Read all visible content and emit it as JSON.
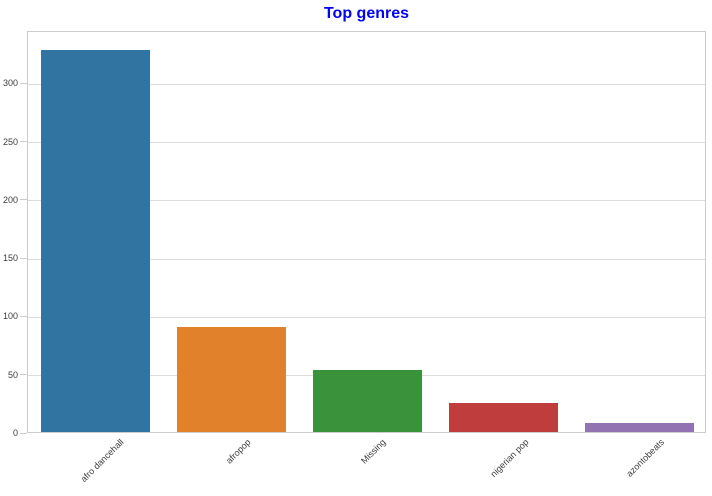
{
  "title": "Top genres",
  "chart_data": {
    "type": "bar",
    "title": "Top genres",
    "categories": [
      "afro dancehall",
      "afropop",
      "Missing",
      "nigerian pop",
      "azontobeats"
    ],
    "values": [
      328,
      90,
      53,
      25,
      8
    ],
    "bar_colors": [
      "#3274a1",
      "#e1812c",
      "#3a923a",
      "#c03d3e",
      "#9372b2"
    ],
    "xlabel": "",
    "ylabel": "",
    "ylim": [
      0,
      345
    ],
    "yticks": [
      0,
      50,
      100,
      150,
      200,
      250,
      300
    ],
    "x_tick_rotation_deg": 45,
    "grid": true,
    "legend": false
  },
  "colors": {
    "title": "#0000ff",
    "grid": "#dcdcdc",
    "spine": "#cccccc",
    "tick_label": "#3c3c3c",
    "background": "#ffffff"
  }
}
